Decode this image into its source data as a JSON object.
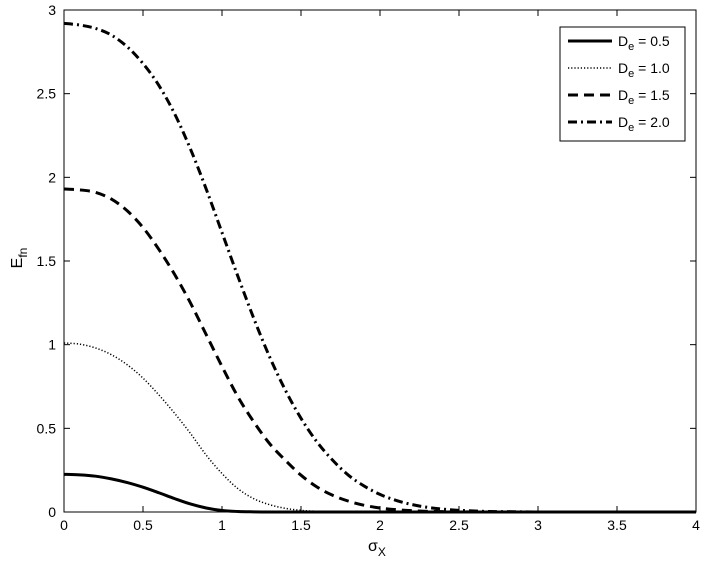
{
  "chart_data": {
    "type": "line",
    "xlabel": "σ",
    "xlabel_sub": "X",
    "ylabel": "E",
    "ylabel_sub": "fn",
    "xlim": [
      0,
      4
    ],
    "ylim": [
      0,
      3
    ],
    "xticks": [
      "0",
      "0.5",
      "1",
      "1.5",
      "2",
      "2.5",
      "3",
      "3.5",
      "4"
    ],
    "yticks": [
      "0",
      "0.5",
      "1",
      "1.5",
      "2",
      "2.5",
      "3"
    ],
    "grid": false,
    "legend_position": "top-right",
    "x": [
      0,
      0.1,
      0.2,
      0.3,
      0.4,
      0.5,
      0.6,
      0.7,
      0.8,
      0.9,
      1.0,
      1.1,
      1.2,
      1.3,
      1.4,
      1.5,
      1.6,
      1.7,
      1.8,
      1.9,
      2.0,
      2.1,
      2.2,
      2.3,
      2.4,
      2.5,
      2.6,
      2.7,
      2.8,
      2.9,
      3.0,
      3.5,
      4.0
    ],
    "series": [
      {
        "label_main": "D",
        "label_sub": "e",
        "label_rest": " = 0.5",
        "style": "solid",
        "values": [
          0.225,
          0.222,
          0.214,
          0.198,
          0.176,
          0.148,
          0.115,
          0.08,
          0.048,
          0.024,
          0.009,
          0.003,
          0.001,
          0,
          0,
          0,
          0,
          0,
          0,
          0,
          0,
          0,
          0,
          0,
          0,
          0,
          0,
          0,
          0,
          0,
          0,
          0,
          0
        ]
      },
      {
        "label_main": "D",
        "label_sub": "e",
        "label_rest": " = 1.0",
        "style": "dotted",
        "values": [
          1.01,
          1.003,
          0.98,
          0.94,
          0.88,
          0.8,
          0.7,
          0.59,
          0.47,
          0.34,
          0.23,
          0.14,
          0.08,
          0.044,
          0.022,
          0.01,
          0.004,
          0.002,
          0.001,
          0,
          0,
          0,
          0,
          0,
          0,
          0,
          0,
          0,
          0,
          0,
          0,
          0,
          0
        ]
      },
      {
        "label_main": "D",
        "label_sub": "e",
        "label_rest": " = 1.5",
        "style": "dashed",
        "values": [
          1.93,
          1.925,
          1.91,
          1.87,
          1.8,
          1.7,
          1.57,
          1.42,
          1.25,
          1.06,
          0.87,
          0.69,
          0.54,
          0.41,
          0.31,
          0.22,
          0.15,
          0.1,
          0.065,
          0.04,
          0.024,
          0.014,
          0.008,
          0.004,
          0.002,
          0.001,
          0,
          0,
          0,
          0,
          0,
          0,
          0
        ]
      },
      {
        "label_main": "D",
        "label_sub": "e",
        "label_rest": " = 2.0",
        "style": "dashdot",
        "values": [
          2.92,
          2.91,
          2.89,
          2.85,
          2.78,
          2.68,
          2.55,
          2.38,
          2.17,
          1.93,
          1.67,
          1.41,
          1.16,
          0.93,
          0.73,
          0.56,
          0.42,
          0.31,
          0.22,
          0.155,
          0.105,
          0.07,
          0.045,
          0.028,
          0.017,
          0.01,
          0.006,
          0.003,
          0.002,
          0.001,
          0,
          0,
          0
        ]
      }
    ]
  }
}
